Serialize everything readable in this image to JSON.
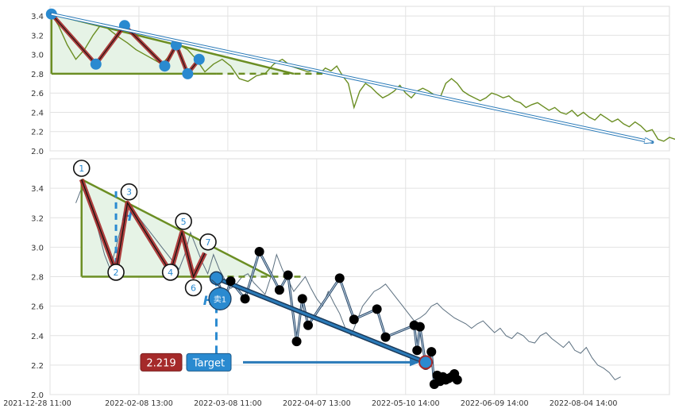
{
  "chart_data": [
    {
      "type": "line",
      "panel": "top",
      "ylim": [
        2.0,
        3.5
      ],
      "y_ticks": [
        "2.0",
        "2.2",
        "2.4",
        "2.6",
        "2.8",
        "3.0",
        "3.2",
        "3.4"
      ],
      "grid": true,
      "series": [
        {
          "x": [
            0.5,
            3,
            6,
            9,
            12,
            15,
            18,
            21,
            24,
            27,
            30,
            33,
            36,
            39,
            42,
            45,
            48,
            51,
            54,
            57,
            60,
            63,
            66,
            69,
            72,
            75,
            78,
            81,
            84,
            87,
            90,
            92,
            94,
            96,
            98,
            100,
            102,
            104,
            106,
            108,
            110,
            112,
            114,
            116,
            118,
            120,
            122,
            124,
            126,
            128,
            130,
            132,
            134,
            136,
            138,
            140,
            142,
            144,
            146,
            148,
            150,
            152,
            154,
            156,
            158,
            160,
            162,
            164,
            166,
            168,
            170,
            172,
            174,
            176,
            178,
            180,
            182,
            184,
            186,
            188,
            190,
            192,
            194,
            196,
            198,
            200,
            202,
            204,
            206,
            208,
            210,
            212,
            214,
            216,
            218,
            220
          ],
          "y": [
            3.42,
            3.3,
            3.1,
            2.95,
            3.05,
            3.2,
            3.32,
            3.25,
            3.18,
            3.12,
            3.05,
            3.0,
            2.95,
            2.9,
            3.0,
            3.1,
            3.05,
            2.95,
            2.82,
            2.9,
            2.95,
            2.88,
            2.75,
            2.72,
            2.78,
            2.8,
            2.9,
            2.95,
            2.88,
            2.85,
            2.82,
            2.84,
            2.8,
            2.86,
            2.83,
            2.88,
            2.78,
            2.7,
            2.45,
            2.62,
            2.7,
            2.66,
            2.6,
            2.55,
            2.58,
            2.62,
            2.68,
            2.6,
            2.55,
            2.62,
            2.65,
            2.62,
            2.58,
            2.55,
            2.7,
            2.75,
            2.7,
            2.62,
            2.58,
            2.55,
            2.52,
            2.55,
            2.6,
            2.58,
            2.55,
            2.57,
            2.52,
            2.5,
            2.45,
            2.48,
            2.5,
            2.46,
            2.42,
            2.45,
            2.4,
            2.38,
            2.42,
            2.36,
            2.4,
            2.35,
            2.32,
            2.38,
            2.34,
            2.3,
            2.33,
            2.28,
            2.25,
            2.3,
            2.26,
            2.2,
            2.22,
            2.12,
            2.1,
            2.14,
            2.12,
            2.15
          ]
        }
      ],
      "pattern_points": {
        "x": [
          0.5,
          16,
          26,
          40,
          44,
          48,
          52
        ],
        "y": [
          3.42,
          2.9,
          3.3,
          2.88,
          3.1,
          2.8,
          2.95
        ]
      },
      "trend_arrow": {
        "from": {
          "x": 0.5,
          "y": 3.42
        },
        "to": {
          "x": 210,
          "y": 2.09
        }
      },
      "neckline_y": 2.8
    },
    {
      "type": "line",
      "panel": "bottom",
      "ylim": [
        2.0,
        3.6
      ],
      "y_ticks": [
        "2.0",
        "2.2",
        "2.4",
        "2.6",
        "2.8",
        "3.0",
        "3.2",
        "3.4"
      ],
      "x_ticks": [
        {
          "x": 0,
          "label": "2021-12-28 11:00"
        },
        {
          "x": 31,
          "label": "2022-02-08 13:00"
        },
        {
          "x": 62,
          "label": "2022-03-08 11:00"
        },
        {
          "x": 93,
          "label": "2022-04-07 13:00"
        },
        {
          "x": 124,
          "label": "2022-05-10 14:00"
        },
        {
          "x": 155,
          "label": "2022-06-09 14:00"
        },
        {
          "x": 186,
          "label": "2022-08-04 14:00"
        }
      ],
      "grid": true,
      "price_series": {
        "x": [
          9,
          11,
          13,
          15,
          17,
          19,
          21,
          23,
          25,
          27,
          29,
          31,
          33,
          35,
          37,
          39,
          41,
          43,
          45,
          47,
          49,
          51,
          53,
          55,
          57,
          59,
          61,
          63,
          65,
          67,
          69,
          71,
          73,
          75,
          77,
          79,
          81,
          83,
          85,
          87,
          89,
          91,
          93,
          95,
          97,
          99,
          101,
          103,
          105,
          107,
          109,
          111,
          113,
          115,
          117,
          119,
          121,
          123,
          125,
          127,
          129,
          131,
          133,
          135,
          137,
          139,
          141,
          143,
          145,
          147,
          149,
          151,
          153,
          155,
          157,
          159,
          161,
          163,
          165,
          167,
          169,
          171,
          173,
          175,
          177,
          179,
          181,
          183,
          185,
          187,
          189,
          191,
          193,
          195,
          197,
          199
        ],
        "y": [
          3.3,
          3.4,
          3.35,
          3.25,
          3.1,
          2.95,
          2.85,
          3.0,
          3.15,
          3.28,
          3.25,
          3.2,
          3.15,
          3.1,
          3.05,
          3.0,
          2.95,
          2.9,
          2.85,
          2.95,
          3.1,
          3.0,
          2.9,
          2.82,
          2.95,
          2.85,
          2.78,
          2.72,
          2.75,
          2.8,
          2.82,
          2.76,
          2.72,
          2.68,
          2.8,
          2.95,
          2.85,
          2.78,
          2.7,
          2.75,
          2.8,
          2.72,
          2.65,
          2.6,
          2.7,
          2.62,
          2.55,
          2.45,
          2.4,
          2.5,
          2.6,
          2.65,
          2.7,
          2.72,
          2.75,
          2.7,
          2.65,
          2.6,
          2.55,
          2.5,
          2.52,
          2.55,
          2.6,
          2.62,
          2.58,
          2.55,
          2.52,
          2.5,
          2.48,
          2.45,
          2.48,
          2.5,
          2.46,
          2.42,
          2.45,
          2.4,
          2.38,
          2.42,
          2.4,
          2.36,
          2.35,
          2.4,
          2.42,
          2.38,
          2.35,
          2.32,
          2.36,
          2.3,
          2.28,
          2.32,
          2.25,
          2.2,
          2.18,
          2.15,
          2.1,
          2.12
        ]
      },
      "pattern_points": {
        "x": [
          11,
          23,
          27,
          42,
          46,
          50,
          54
        ],
        "y": [
          3.46,
          2.83,
          3.3,
          2.83,
          3.1,
          2.8,
          2.96
        ]
      },
      "pattern_labels": [
        "1",
        "2",
        "3",
        "4",
        "5",
        "6",
        "7"
      ],
      "swing_series": {
        "x": [
          58,
          61,
          63,
          68,
          73,
          80,
          83,
          86,
          88,
          90,
          101,
          106,
          114,
          117,
          127,
          128,
          129,
          131,
          133,
          134,
          135,
          136,
          137,
          138,
          139,
          140,
          141,
          142
        ],
        "y": [
          2.79,
          2.65,
          2.77,
          2.65,
          2.97,
          2.71,
          2.81,
          2.36,
          2.65,
          2.47,
          2.79,
          2.51,
          2.58,
          2.39,
          2.47,
          2.3,
          2.46,
          2.2,
          2.29,
          2.07,
          2.13,
          2.09,
          2.12,
          2.1,
          2.11,
          2.12,
          2.14,
          2.1
        ]
      },
      "breakout_point": {
        "x": 58,
        "y": 2.79
      },
      "target_point": {
        "x": 131,
        "y": 2.219
      },
      "neckline_y": 2.8,
      "height_marker": "H",
      "sell_label": "卖1",
      "target_value": "2.219",
      "target_label": "Target"
    }
  ],
  "colors": {
    "pattern_fill": "#e6f3e6",
    "pattern_stroke": "#6b8e23",
    "zigzag": "#a52a2a",
    "swing": "#000000",
    "trend_blue": "#2a7ab8",
    "marker_blue": "#2a8ad0",
    "price_line": "#5b6f7f",
    "top_price_line": "#6b8e23",
    "target_value_bg": "#a52a2a",
    "target_label_bg": "#2a8ad0"
  }
}
